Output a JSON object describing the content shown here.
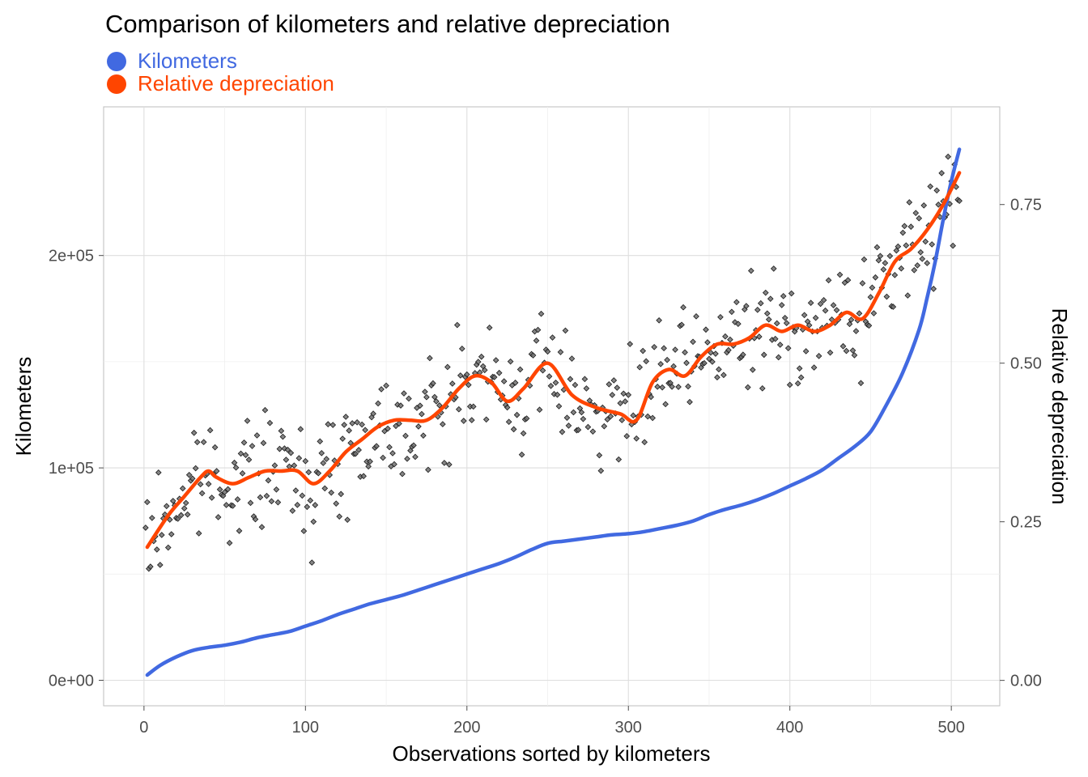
{
  "chart_data": {
    "type": "line",
    "title": "Comparison of kilometers and relative depreciation",
    "xlabel": "Observations sorted by kilometers",
    "ylabel_left": "Kilometers",
    "ylabel_right": "Relative depreciation",
    "xlim": [
      -25,
      530
    ],
    "ylim_left": [
      -12000,
      270000
    ],
    "ylim_right": [
      -0.04,
      0.904
    ],
    "x_ticks": [
      0,
      100,
      200,
      300,
      400,
      500
    ],
    "x_tick_labels": [
      "0",
      "100",
      "200",
      "300",
      "400",
      "500"
    ],
    "y_left_ticks": [
      0,
      100000,
      200000
    ],
    "y_left_tick_labels": [
      "0e+00",
      "1e+05",
      "2e+05"
    ],
    "y_right_ticks": [
      0,
      0.25,
      0.5,
      0.75
    ],
    "y_right_tick_labels": [
      "0.00",
      "0.25",
      "0.50",
      "0.75"
    ],
    "grid": true,
    "legend_position": "top-left",
    "series": [
      {
        "name": "Kilometers",
        "axis": "left",
        "color": "#4169E1",
        "x": [
          2,
          10,
          20,
          30,
          40,
          50,
          60,
          70,
          80,
          90,
          100,
          110,
          120,
          130,
          140,
          150,
          160,
          170,
          180,
          190,
          200,
          210,
          220,
          230,
          240,
          250,
          260,
          270,
          280,
          290,
          300,
          310,
          320,
          330,
          340,
          350,
          360,
          370,
          380,
          390,
          400,
          410,
          420,
          430,
          440,
          450,
          460,
          470,
          480,
          485,
          490,
          495,
          500,
          505
        ],
        "values": [
          2500,
          7000,
          11000,
          14000,
          15500,
          16500,
          18000,
          20000,
          21500,
          23000,
          25500,
          28000,
          31000,
          33500,
          36000,
          38000,
          40000,
          42500,
          45000,
          47500,
          50000,
          52500,
          55000,
          58000,
          61500,
          64500,
          65500,
          66500,
          67500,
          68500,
          69000,
          70000,
          71500,
          73000,
          75000,
          78000,
          80500,
          82500,
          85000,
          88000,
          91500,
          95000,
          99000,
          104500,
          110000,
          117000,
          130000,
          145000,
          165000,
          180000,
          197000,
          217000,
          235000,
          250000
        ]
      },
      {
        "name": "Relative depreciation",
        "axis": "right",
        "color": "#FF4500",
        "x": [
          2,
          15,
          25,
          35,
          40,
          45,
          55,
          65,
          75,
          85,
          95,
          105,
          115,
          125,
          135,
          145,
          155,
          165,
          175,
          185,
          195,
          205,
          215,
          225,
          235,
          250,
          265,
          280,
          295,
          305,
          315,
          325,
          335,
          345,
          355,
          365,
          375,
          385,
          395,
          405,
          415,
          425,
          435,
          445,
          455,
          465,
          475,
          485,
          495,
          505
        ],
        "values": [
          0.21,
          0.26,
          0.29,
          0.32,
          0.33,
          0.32,
          0.31,
          0.32,
          0.33,
          0.33,
          0.33,
          0.31,
          0.33,
          0.36,
          0.38,
          0.4,
          0.41,
          0.41,
          0.41,
          0.43,
          0.46,
          0.48,
          0.47,
          0.44,
          0.46,
          0.5,
          0.45,
          0.43,
          0.42,
          0.41,
          0.47,
          0.49,
          0.48,
          0.51,
          0.53,
          0.53,
          0.54,
          0.56,
          0.55,
          0.56,
          0.55,
          0.56,
          0.58,
          0.57,
          0.61,
          0.66,
          0.68,
          0.71,
          0.75,
          0.8
        ]
      }
    ],
    "scatter_note_series": "Relative depreciation (individual observations, right axis)"
  }
}
